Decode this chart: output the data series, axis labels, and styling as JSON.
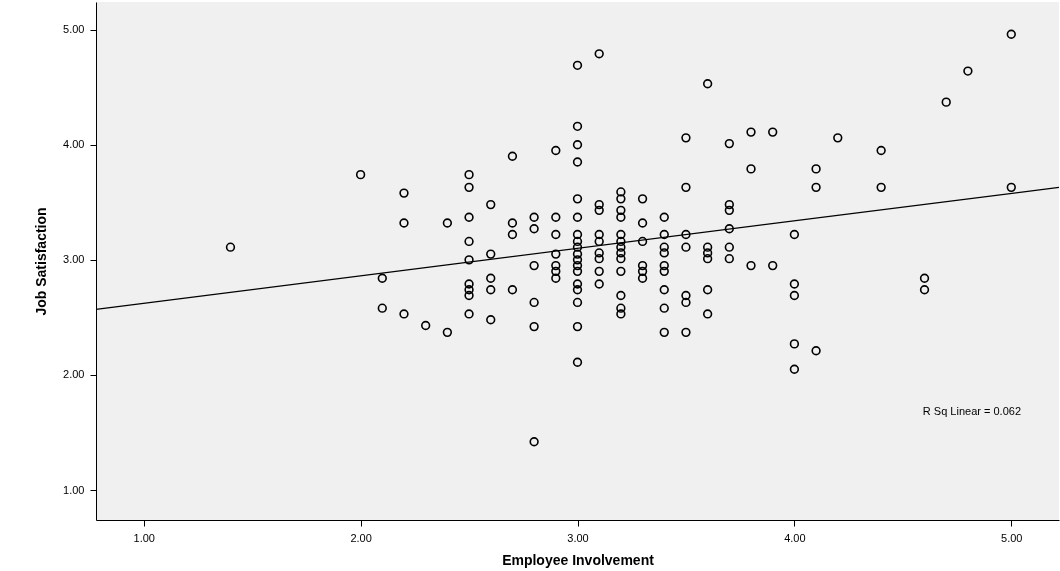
{
  "chart_data": {
    "type": "scatter",
    "xlabel": "Employee Involvement",
    "ylabel": "Job Satisfaction",
    "annotations": [
      "R Sq Linear = 0.062"
    ],
    "xlim": [
      0.78,
      5.22
    ],
    "ylim": [
      0.74,
      5.24
    ],
    "xticks": [
      {
        "value": 1,
        "label": "1.00"
      },
      {
        "value": 2,
        "label": "2.00"
      },
      {
        "value": 3,
        "label": "3.00"
      },
      {
        "value": 4,
        "label": "4.00"
      },
      {
        "value": 5,
        "label": "5.00"
      }
    ],
    "yticks": [
      {
        "value": 1,
        "label": "1.00"
      },
      {
        "value": 2,
        "label": "2.00"
      },
      {
        "value": 3,
        "label": "3.00"
      },
      {
        "value": 4,
        "label": "4.00"
      },
      {
        "value": 5,
        "label": "5.00"
      }
    ],
    "grid": false,
    "series": [
      {
        "marker": "circle",
        "color": "#000000",
        "x": [
          1.4,
          2.0,
          2.1,
          2.1,
          2.2,
          2.2,
          2.2,
          2.3,
          2.4,
          2.4,
          2.5,
          2.5,
          2.5,
          2.5,
          2.5,
          2.5,
          2.5,
          2.5,
          2.5,
          2.6,
          2.6,
          2.6,
          2.6,
          2.6,
          2.7,
          2.7,
          2.7,
          2.7,
          2.8,
          2.8,
          2.8,
          2.8,
          2.8,
          2.8,
          2.9,
          2.9,
          2.9,
          2.9,
          2.9,
          2.9,
          2.9,
          3.0,
          3.0,
          3.0,
          3.0,
          3.0,
          3.0,
          3.0,
          3.0,
          3.0,
          3.0,
          3.0,
          3.0,
          3.0,
          3.0,
          3.0,
          3.0,
          3.0,
          3.0,
          3.1,
          3.1,
          3.1,
          3.1,
          3.1,
          3.1,
          3.1,
          3.1,
          3.1,
          3.2,
          3.2,
          3.2,
          3.2,
          3.2,
          3.2,
          3.2,
          3.2,
          3.2,
          3.2,
          3.2,
          3.2,
          3.2,
          3.3,
          3.3,
          3.3,
          3.3,
          3.3,
          3.3,
          3.4,
          3.4,
          3.4,
          3.4,
          3.4,
          3.4,
          3.4,
          3.4,
          3.4,
          3.5,
          3.5,
          3.5,
          3.5,
          3.5,
          3.5,
          3.5,
          3.6,
          3.6,
          3.6,
          3.6,
          3.6,
          3.6,
          3.7,
          3.7,
          3.7,
          3.7,
          3.7,
          3.7,
          3.8,
          3.8,
          3.8,
          3.9,
          3.9,
          4.0,
          4.0,
          4.0,
          4.0,
          4.0,
          4.1,
          4.1,
          4.1,
          4.2,
          4.4,
          4.4,
          4.6,
          4.6,
          4.7,
          4.8,
          5.0,
          5.0
        ],
        "values": [
          3.11,
          3.74,
          2.84,
          2.58,
          3.58,
          3.32,
          2.53,
          2.43,
          3.32,
          2.37,
          3.74,
          3.63,
          3.37,
          3.16,
          3.0,
          2.79,
          2.74,
          2.69,
          2.53,
          3.48,
          3.05,
          2.84,
          2.74,
          2.48,
          3.9,
          3.32,
          3.22,
          2.74,
          3.37,
          3.27,
          2.95,
          2.63,
          2.42,
          1.42,
          3.95,
          3.37,
          3.22,
          3.05,
          2.95,
          2.9,
          2.84,
          4.69,
          4.16,
          4.0,
          3.85,
          3.53,
          3.37,
          3.22,
          3.16,
          3.11,
          3.05,
          3.0,
          2.95,
          2.9,
          2.79,
          2.74,
          2.63,
          2.42,
          2.11,
          4.79,
          3.48,
          3.43,
          3.22,
          3.16,
          3.06,
          3.01,
          2.9,
          2.79,
          3.59,
          3.53,
          3.43,
          3.37,
          3.22,
          3.16,
          3.11,
          3.06,
          3.01,
          2.9,
          2.69,
          2.58,
          2.53,
          3.53,
          3.32,
          3.16,
          2.95,
          2.9,
          2.84,
          3.37,
          3.22,
          3.11,
          3.06,
          2.95,
          2.9,
          2.74,
          2.58,
          2.37,
          4.06,
          3.63,
          3.22,
          3.11,
          2.69,
          2.63,
          2.37,
          4.53,
          3.11,
          3.06,
          3.01,
          2.74,
          2.53,
          4.01,
          3.48,
          3.43,
          3.27,
          3.11,
          3.01,
          4.11,
          3.79,
          2.95,
          4.11,
          2.95,
          3.22,
          2.79,
          2.69,
          2.27,
          2.05,
          3.79,
          3.63,
          2.21,
          4.06,
          3.95,
          3.63,
          2.84,
          2.74,
          4.37,
          4.64,
          4.96,
          3.63
        ]
      },
      {
        "type": "line",
        "color": "#000000",
        "line_style": "solid",
        "x": [
          0.78,
          5.22
        ],
        "values": [
          2.57,
          3.63
        ]
      }
    ]
  }
}
